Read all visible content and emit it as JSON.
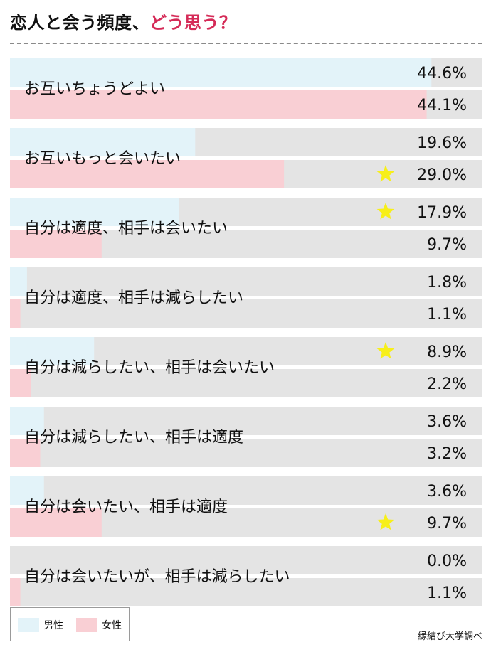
{
  "title": {
    "main": "恋人と会う頻度、",
    "accent": "どう思う？"
  },
  "legend": {
    "male": {
      "label": "男性",
      "color": "#e3f3f9"
    },
    "female": {
      "label": "女性",
      "color": "#f9cfd4"
    }
  },
  "source": "縁結び大学調べ",
  "colors": {
    "track": "#e4e4e4",
    "star": "#f7ef1a",
    "accent": "#d52a57"
  },
  "chart_data": {
    "type": "bar",
    "orientation": "horizontal",
    "unit": "%",
    "xlim": [
      0,
      50
    ],
    "categories": [
      "お互いちょうどよい",
      "お互いもっと会いたい",
      "自分は適度、相手は会いたい",
      "自分は適度、相手は減らしたい",
      "自分は減らしたい、相手は会いたい",
      "自分は減らしたい、相手は適度",
      "自分は会いたい、相手は適度",
      "自分は会いたいが、相手は減らしたい"
    ],
    "series": [
      {
        "name": "男性",
        "values": [
          44.6,
          19.6,
          17.9,
          1.8,
          8.9,
          3.6,
          3.6,
          0.0
        ],
        "labels": [
          "44.6%",
          "19.6%",
          "17.9%",
          "1.8%",
          "8.9%",
          "3.6%",
          "3.6%",
          "0.0%"
        ],
        "starred": [
          false,
          false,
          true,
          false,
          true,
          false,
          false,
          false
        ]
      },
      {
        "name": "女性",
        "values": [
          44.1,
          29.0,
          9.7,
          1.1,
          2.2,
          3.2,
          9.7,
          1.1
        ],
        "labels": [
          "44.1%",
          "29.0%",
          "9.7%",
          "1.1%",
          "2.2%",
          "3.2%",
          "9.7%",
          "1.1%"
        ],
        "starred": [
          false,
          true,
          false,
          false,
          false,
          false,
          true,
          false
        ]
      }
    ]
  }
}
